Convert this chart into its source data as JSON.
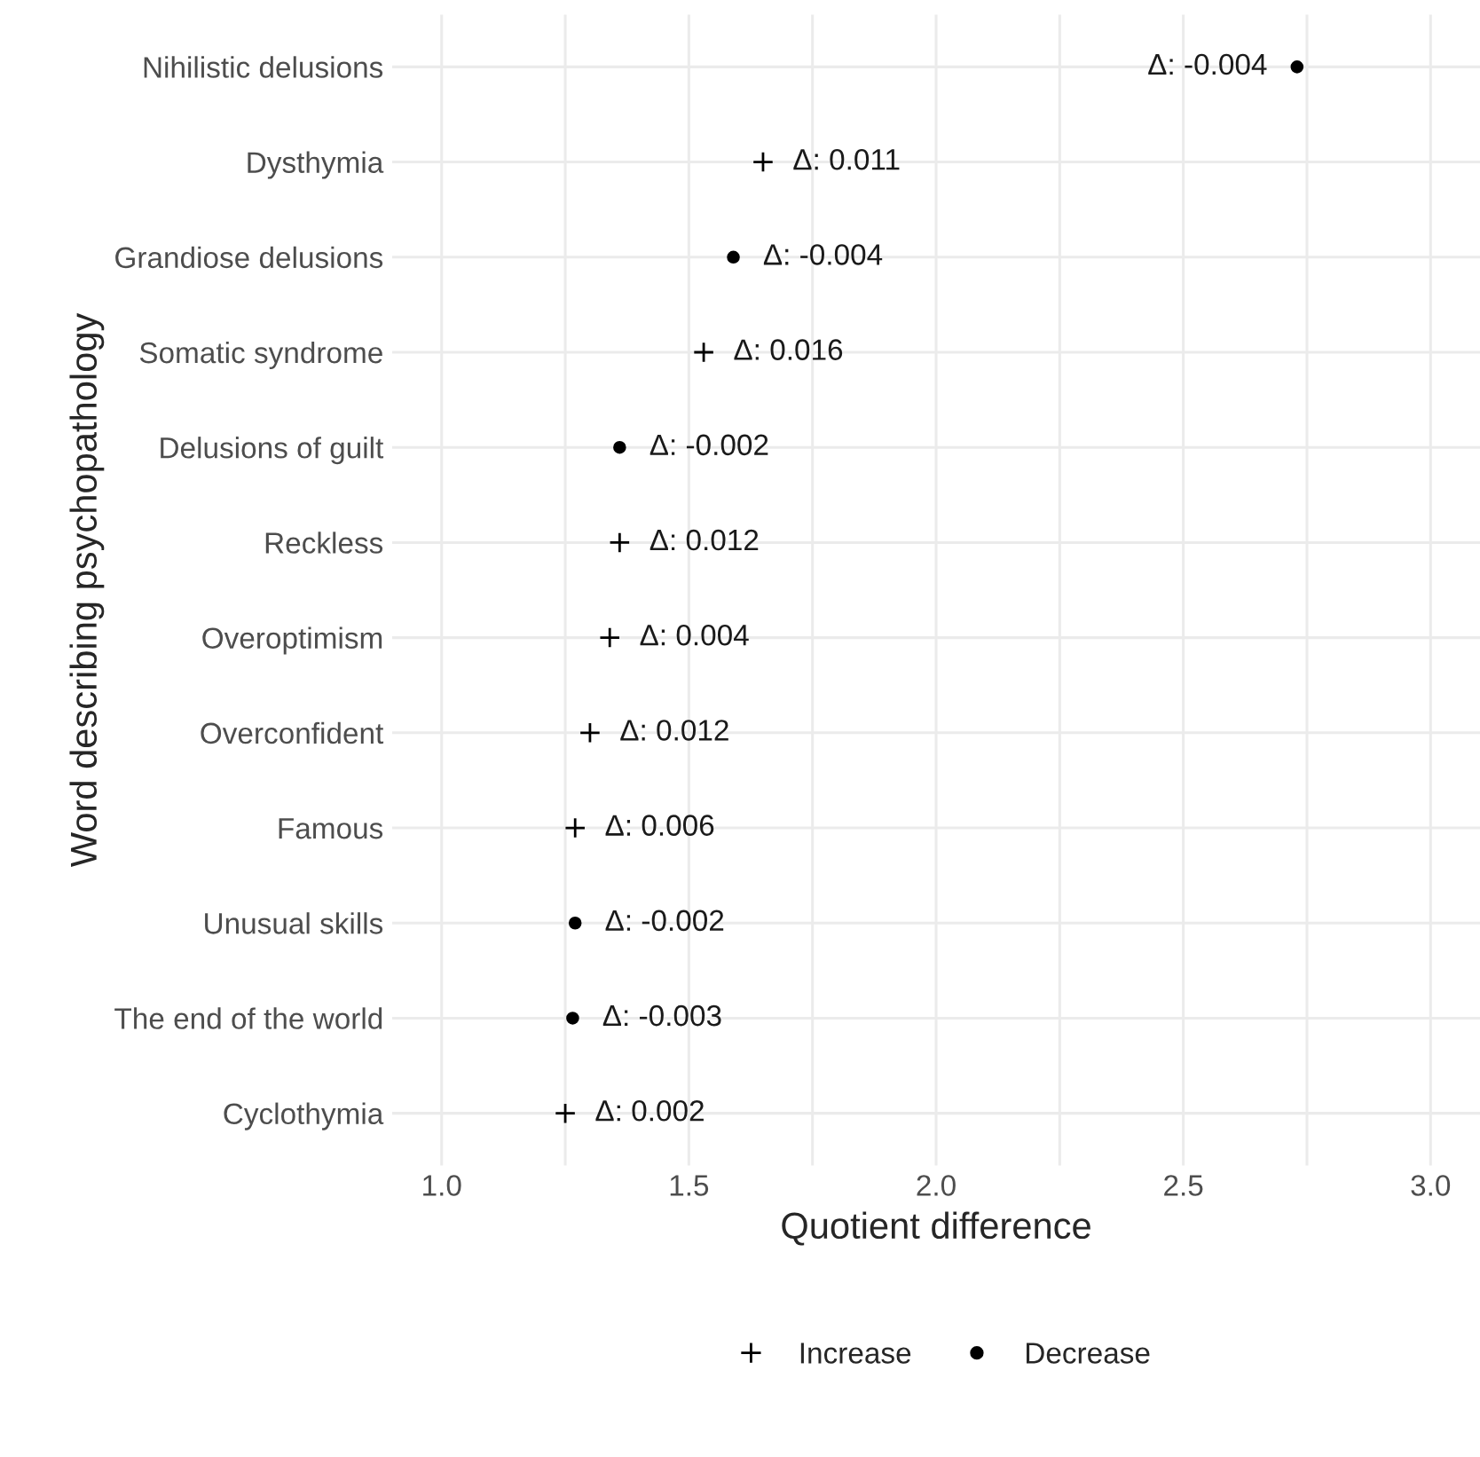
{
  "chart_data": {
    "type": "scatter",
    "orientation": "horizontal",
    "xlabel": "Quotient difference",
    "ylabel": "Word describing psychopathology",
    "categories": [
      "Nihilistic delusions",
      "Dysthymia",
      "Grandiose delusions",
      "Somatic syndrome",
      "Delusions of guilt",
      "Reckless",
      "Overoptimism",
      "Overconfident",
      "Famous",
      "Unusual skills",
      "The end of the world",
      "Cyclothymia"
    ],
    "series": [
      {
        "name": "Increase",
        "color": "#000000",
        "marker": "cross",
        "values": [
          null,
          1.65,
          null,
          1.53,
          null,
          1.36,
          1.34,
          1.3,
          1.27,
          null,
          null,
          1.25
        ]
      },
      {
        "name": "Decrease",
        "color": "#000000",
        "marker": "circle",
        "values": [
          2.73,
          null,
          1.59,
          null,
          1.36,
          null,
          null,
          null,
          null,
          1.27,
          1.265,
          null
        ]
      }
    ],
    "annotations": [
      {
        "text": "Δ: -0.004",
        "x": 2.73,
        "y": "Nihilistic delusions"
      },
      {
        "text": "Δ: 0.011",
        "x": 1.65,
        "y": "Dysthymia"
      },
      {
        "text": "Δ: -0.004",
        "x": 1.59,
        "y": "Grandiose delusions"
      },
      {
        "text": "Δ: 0.016",
        "x": 1.53,
        "y": "Somatic syndrome"
      },
      {
        "text": "Δ: -0.002",
        "x": 1.36,
        "y": "Delusions of guilt"
      },
      {
        "text": "Δ: 0.012",
        "x": 1.36,
        "y": "Reckless"
      },
      {
        "text": "Δ: 0.004",
        "x": 1.34,
        "y": "Overoptimism"
      },
      {
        "text": "Δ: 0.012",
        "x": 1.3,
        "y": "Overconfident"
      },
      {
        "text": "Δ: 0.006",
        "x": 1.27,
        "y": "Famous"
      },
      {
        "text": "Δ: -0.002",
        "x": 1.27,
        "y": "Unusual skills"
      },
      {
        "text": "Δ: -0.003",
        "x": 1.265,
        "y": "The end of the world"
      },
      {
        "text": "Δ: 0.002",
        "x": 1.25,
        "y": "Cyclothymia"
      }
    ],
    "xlim": [
      0.9,
      3.1
    ],
    "xticks": [
      {
        "value": 1.0,
        "label": "1.0"
      },
      {
        "value": 1.25,
        "label": null
      },
      {
        "value": 1.5,
        "label": "1.5"
      },
      {
        "value": 1.75,
        "label": null
      },
      {
        "value": 2.0,
        "label": "2.0"
      },
      {
        "value": 2.25,
        "label": null
      },
      {
        "value": 2.5,
        "label": "2.5"
      },
      {
        "value": 2.75,
        "label": null
      },
      {
        "value": 3.0,
        "label": "3.0"
      }
    ],
    "grid": true,
    "legend": "bottom"
  }
}
